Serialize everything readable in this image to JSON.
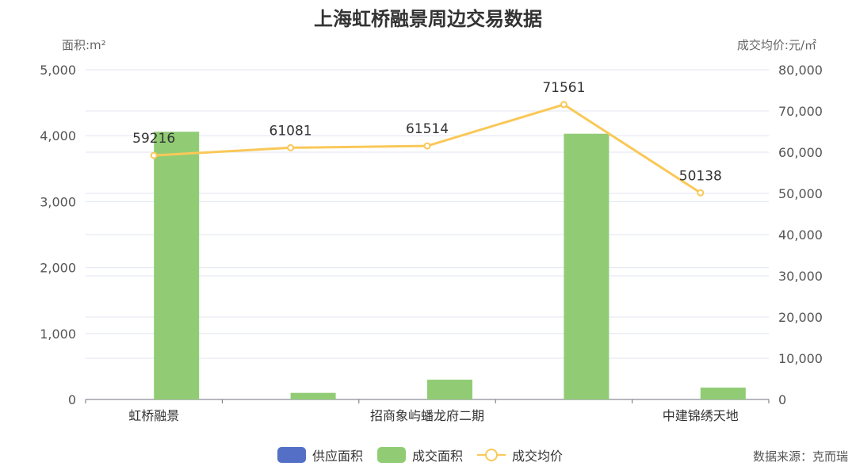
{
  "chart_data": {
    "type": "bar",
    "title": "上海虹桥融景周边交易数据",
    "left_axis_label": "面积:m²",
    "right_axis_label": "成交均价:元/㎡",
    "categories": [
      "虹桥融景",
      "",
      "招商象屿蟠龙府二期",
      "",
      "中建锦绣天地"
    ],
    "left_ylim": [
      0,
      5000
    ],
    "left_ticks": [
      "0",
      "1,000",
      "2,000",
      "3,000",
      "4,000",
      "5,000"
    ],
    "left_tick_values": [
      0,
      1000,
      2000,
      3000,
      4000,
      5000
    ],
    "right_ylim": [
      0,
      80000
    ],
    "right_ticks": [
      "0",
      "10,000",
      "20,000",
      "30,000",
      "40,000",
      "50,000",
      "60,000",
      "70,000",
      "80,000"
    ],
    "right_tick_values": [
      0,
      10000,
      20000,
      30000,
      40000,
      50000,
      60000,
      70000,
      80000
    ],
    "series": [
      {
        "name": "供应面积",
        "type": "bar",
        "axis": "left",
        "color": "#5470c6",
        "values": [
          0,
          0,
          0,
          0,
          0
        ]
      },
      {
        "name": "成交面积",
        "type": "bar",
        "axis": "left",
        "color": "#91cc75",
        "values": [
          4060,
          100,
          300,
          4030,
          180
        ]
      },
      {
        "name": "成交均价",
        "type": "line",
        "axis": "right",
        "color": "#fac858",
        "values": [
          59216,
          61081,
          61514,
          71561,
          50138
        ],
        "labels": [
          "59216",
          "61081",
          "61514",
          "71561",
          "50138"
        ]
      }
    ],
    "grid": true,
    "legend_position": "bottom"
  },
  "source": "数据来源：克而瑞"
}
